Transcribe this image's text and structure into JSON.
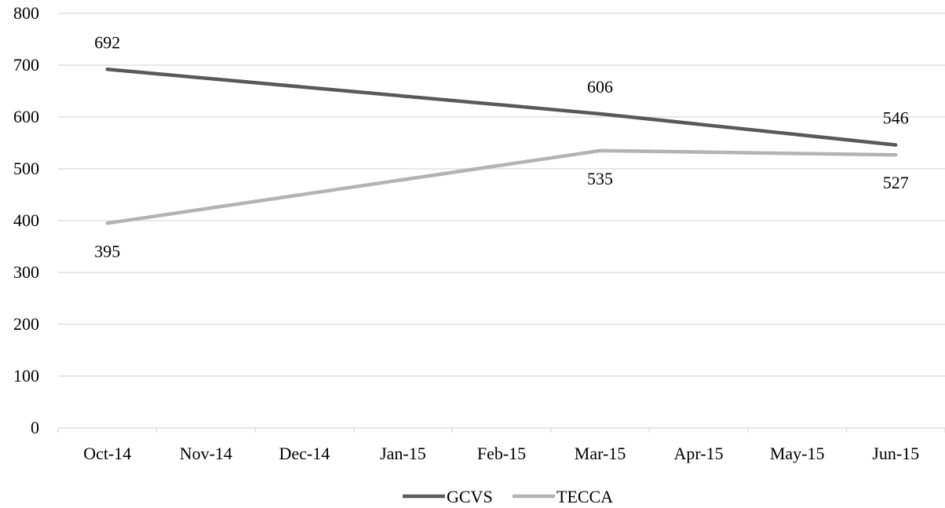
{
  "chart_data": {
    "type": "line",
    "categories": [
      "Oct-14",
      "Nov-14",
      "Dec-14",
      "Jan-15",
      "Feb-15",
      "Mar-15",
      "Apr-15",
      "May-15",
      "Jun-15"
    ],
    "ylim": [
      0,
      800
    ],
    "yticks": [
      0,
      100,
      200,
      300,
      400,
      500,
      600,
      700,
      800
    ],
    "grid": true,
    "legend_position": "bottom",
    "series": [
      {
        "name": "GCVS",
        "color": "#595959",
        "points": [
          {
            "category": "Oct-14",
            "value": 692,
            "label": "692"
          },
          {
            "category": "Mar-15",
            "value": 606,
            "label": "606"
          },
          {
            "category": "Jun-15",
            "value": 546,
            "label": "546"
          }
        ]
      },
      {
        "name": "TECCA",
        "color": "#b3b3b3",
        "points": [
          {
            "category": "Oct-14",
            "value": 395,
            "label": "395"
          },
          {
            "category": "Mar-15",
            "value": 535,
            "label": "535"
          },
          {
            "category": "Jun-15",
            "value": 527,
            "label": "527"
          }
        ]
      }
    ]
  }
}
